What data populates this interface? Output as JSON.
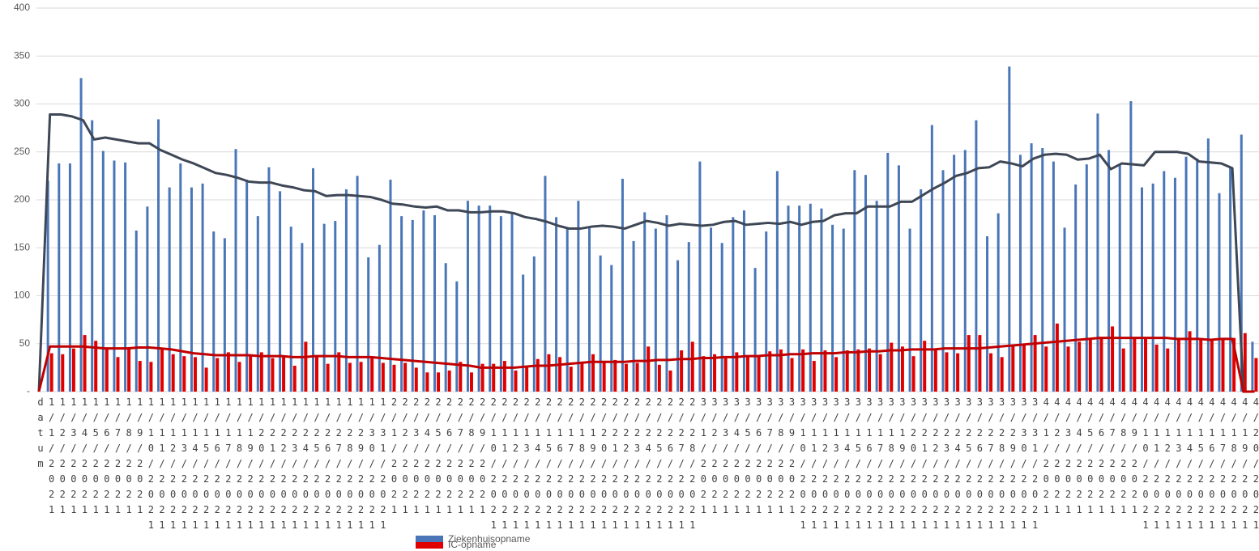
{
  "chart_data": {
    "type": "bar",
    "categories": [
      "datum",
      "1/1/2021",
      "1/2/2021",
      "1/3/2021",
      "1/4/2021",
      "1/5/2021",
      "1/6/2021",
      "1/7/2021",
      "1/8/2021",
      "1/9/2021",
      "1/10/2021",
      "1/11/2021",
      "1/12/2021",
      "1/13/2021",
      "1/14/2021",
      "1/15/2021",
      "1/16/2021",
      "1/17/2021",
      "1/18/2021",
      "1/19/2021",
      "1/20/2021",
      "1/21/2021",
      "1/22/2021",
      "1/23/2021",
      "1/24/2021",
      "1/25/2021",
      "1/26/2021",
      "1/27/2021",
      "1/28/2021",
      "1/29/2021",
      "1/30/2021",
      "1/31/2021",
      "2/1/2021",
      "2/2/2021",
      "2/3/2021",
      "2/4/2021",
      "2/5/2021",
      "2/6/2021",
      "2/7/2021",
      "2/8/2021",
      "2/9/2021",
      "2/10/2021",
      "2/11/2021",
      "2/12/2021",
      "2/13/2021",
      "2/14/2021",
      "2/15/2021",
      "2/16/2021",
      "2/17/2021",
      "2/18/2021",
      "2/19/2021",
      "2/20/2021",
      "2/21/2021",
      "2/22/2021",
      "2/23/2021",
      "2/24/2021",
      "2/25/2021",
      "2/26/2021",
      "2/27/2021",
      "2/28/2021",
      "3/1/2021",
      "3/2/2021",
      "3/3/2021",
      "3/4/2021",
      "3/5/2021",
      "3/6/2021",
      "3/7/2021",
      "3/8/2021",
      "3/9/2021",
      "3/10/2021",
      "3/11/2021",
      "3/12/2021",
      "3/13/2021",
      "3/14/2021",
      "3/15/2021",
      "3/16/2021",
      "3/17/2021",
      "3/18/2021",
      "3/19/2021",
      "3/20/2021",
      "3/21/2021",
      "3/22/2021",
      "3/23/2021",
      "3/24/2021",
      "3/25/2021",
      "3/26/2021",
      "3/27/2021",
      "3/28/2021",
      "3/29/2021",
      "3/30/2021",
      "3/31/2021",
      "4/1/2021",
      "4/2/2021",
      "4/3/2021",
      "4/4/2021",
      "4/5/2021",
      "4/6/2021",
      "4/7/2021",
      "4/8/2021",
      "4/9/2021",
      "4/10/2021",
      "4/11/2021",
      "4/12/2021",
      "4/13/2021",
      "4/14/2021",
      "4/15/2021",
      "4/16/2021",
      "4/17/2021",
      "4/18/2021",
      "4/19/2021",
      "4/20/2021"
    ],
    "series": [
      {
        "name": "Ziekenhuisopname",
        "color": "#4a76b8",
        "values": [
          null,
          220,
          238,
          238,
          327,
          283,
          251,
          241,
          239,
          168,
          193,
          284,
          213,
          238,
          213,
          217,
          167,
          160,
          253,
          221,
          183,
          234,
          209,
          172,
          155,
          233,
          175,
          178,
          211,
          225,
          140,
          153,
          221,
          183,
          179,
          189,
          184,
          134,
          115,
          199,
          194,
          194,
          183,
          186,
          122,
          141,
          225,
          182,
          170,
          199,
          172,
          142,
          132,
          222,
          157,
          187,
          170,
          184,
          137,
          156,
          240,
          171,
          155,
          182,
          189,
          129,
          167,
          230,
          194,
          194,
          196,
          191,
          174,
          170,
          231,
          226,
          199,
          249,
          236,
          170,
          211,
          278,
          231,
          247,
          252,
          283,
          162,
          186,
          339,
          247,
          259,
          254,
          240,
          171,
          216,
          237,
          290,
          252,
          237,
          303,
          213,
          217,
          230,
          223,
          245,
          243,
          264,
          207,
          233,
          268,
          52
        ]
      },
      {
        "name": "IC-opname",
        "color": "#e00000",
        "values": [
          null,
          40,
          39,
          45,
          59,
          53,
          46,
          36,
          45,
          32,
          31,
          46,
          39,
          37,
          36,
          25,
          35,
          41,
          31,
          38,
          41,
          35,
          36,
          27,
          52,
          36,
          29,
          41,
          30,
          31,
          37,
          30,
          28,
          30,
          25,
          20,
          20,
          22,
          31,
          20,
          29,
          29,
          32,
          22,
          27,
          34,
          39,
          36,
          26,
          30,
          39,
          30,
          33,
          29,
          30,
          47,
          28,
          22,
          43,
          52,
          37,
          39,
          35,
          41,
          38,
          37,
          42,
          44,
          35,
          44,
          32,
          43,
          36,
          43,
          44,
          45,
          39,
          51,
          47,
          37,
          53,
          43,
          41,
          40,
          59,
          59,
          40,
          36,
          49,
          49,
          59,
          47,
          71,
          47,
          52,
          56,
          55,
          68,
          45,
          56,
          57,
          49,
          45,
          54,
          63,
          54,
          55,
          56,
          56,
          61,
          35
        ]
      },
      {
        "type": "line",
        "color": "#3e4756",
        "values": [
          0,
          289,
          289,
          287,
          283,
          263,
          265,
          263,
          261,
          259,
          259,
          252,
          247,
          242,
          238,
          233,
          228,
          226,
          223,
          219,
          218,
          218,
          215,
          213,
          210,
          209,
          204,
          205,
          205,
          204,
          203,
          200,
          196,
          195,
          193,
          192,
          193,
          189,
          189,
          187,
          187,
          188,
          188,
          186,
          182,
          180,
          177,
          173,
          170,
          170,
          172,
          173,
          172,
          170,
          174,
          178,
          176,
          173,
          175,
          174,
          173,
          174,
          177,
          178,
          174,
          175,
          176,
          175,
          177,
          174,
          177,
          178,
          184,
          186,
          186,
          193,
          193,
          193,
          198,
          198,
          205,
          212,
          218,
          225,
          228,
          233,
          234,
          240,
          238,
          235,
          243,
          247,
          248,
          247,
          242,
          243,
          247,
          232,
          238,
          237,
          236,
          250,
          250,
          250,
          248,
          240,
          239,
          238,
          233,
          0,
          0
        ]
      },
      {
        "type": "line",
        "color": "#c00000",
        "values": [
          0,
          47,
          47,
          47,
          47,
          46,
          45,
          45,
          45,
          46,
          46,
          45,
          44,
          42,
          40,
          39,
          38,
          38,
          38,
          38,
          37,
          37,
          37,
          36,
          36,
          37,
          37,
          37,
          36,
          36,
          36,
          35,
          34,
          33,
          32,
          31,
          30,
          29,
          28,
          27,
          25,
          25,
          25,
          25,
          26,
          27,
          27,
          28,
          29,
          30,
          31,
          31,
          31,
          31,
          32,
          32,
          33,
          33,
          34,
          34,
          35,
          35,
          36,
          36,
          37,
          37,
          38,
          38,
          39,
          39,
          40,
          40,
          40,
          41,
          41,
          42,
          42,
          43,
          43,
          44,
          44,
          44,
          45,
          45,
          45,
          45,
          46,
          47,
          48,
          49,
          50,
          51,
          52,
          53,
          54,
          55,
          56,
          56,
          56,
          56,
          56,
          56,
          56,
          55,
          55,
          55,
          54,
          55,
          55,
          0,
          0
        ]
      }
    ],
    "ylim": [
      0,
      400
    ],
    "yticks": [
      {
        "value": 0,
        "label": "-"
      },
      50,
      100,
      150,
      200,
      250,
      300,
      350,
      400
    ],
    "grid": true
  }
}
